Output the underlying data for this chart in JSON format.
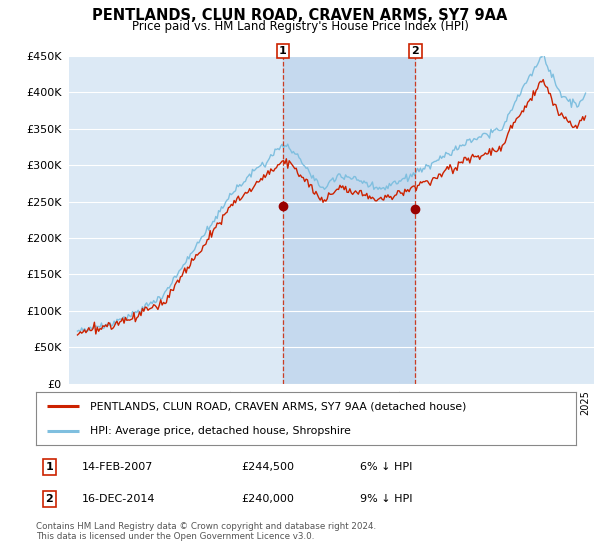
{
  "title": "PENTLANDS, CLUN ROAD, CRAVEN ARMS, SY7 9AA",
  "subtitle": "Price paid vs. HM Land Registry's House Price Index (HPI)",
  "ylim": [
    0,
    450000
  ],
  "yticks": [
    0,
    50000,
    100000,
    150000,
    200000,
    250000,
    300000,
    350000,
    400000,
    450000
  ],
  "bg_color": "#dce9f5",
  "shade_color": "#c5d9ee",
  "grid_color": "#ffffff",
  "sale1_date": 2007.12,
  "sale1_price": 244500,
  "sale2_date": 2014.96,
  "sale2_price": 240000,
  "sale1_note": "14-FEB-2007",
  "sale1_amount": "£244,500",
  "sale1_pct": "6% ↓ HPI",
  "sale2_note": "16-DEC-2014",
  "sale2_amount": "£240,000",
  "sale2_pct": "9% ↓ HPI",
  "legend_line1": "PENTLANDS, CLUN ROAD, CRAVEN ARMS, SY7 9AA (detached house)",
  "legend_line2": "HPI: Average price, detached house, Shropshire",
  "footer": "Contains HM Land Registry data © Crown copyright and database right 2024.\nThis data is licensed under the Open Government Licence v3.0.",
  "hpi_color": "#7fbfdf",
  "paid_color": "#cc2200",
  "sale_vline_color": "#cc2200",
  "marker_color": "#990000"
}
